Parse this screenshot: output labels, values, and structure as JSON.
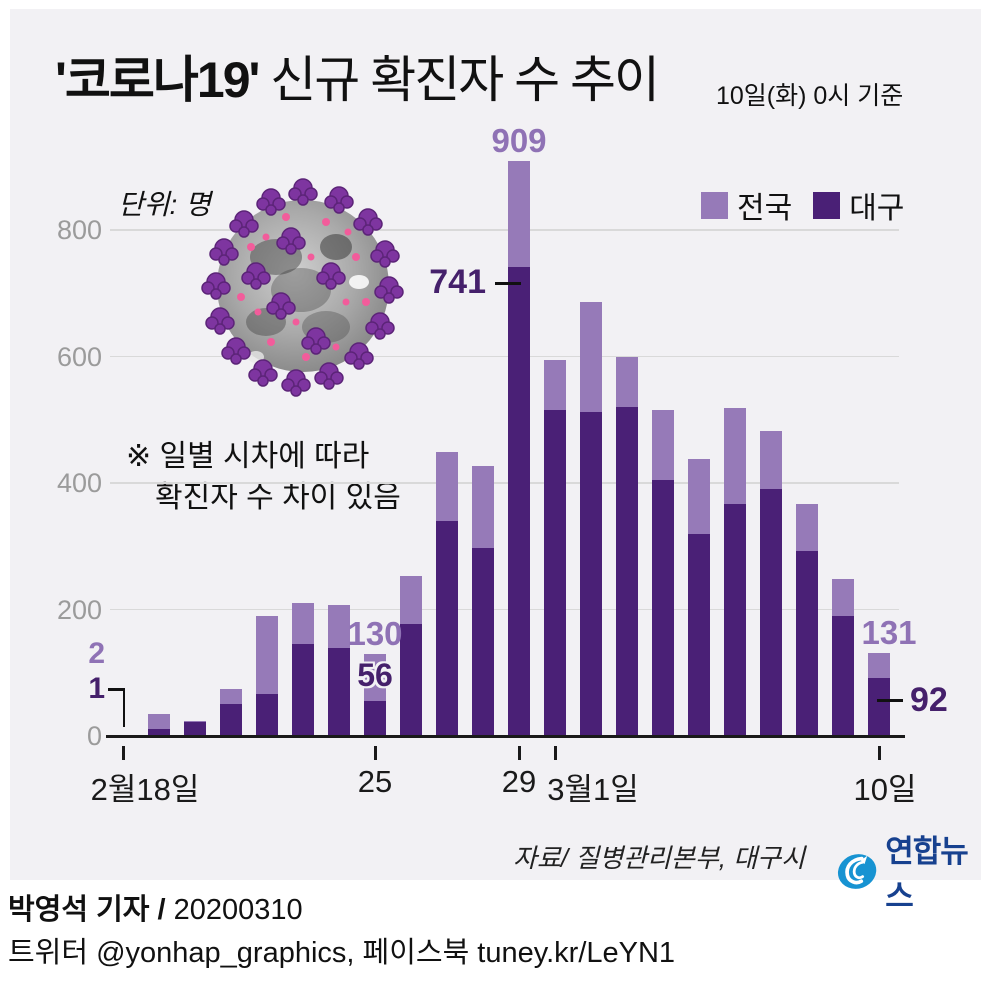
{
  "title": {
    "highlight": "'코로나19'",
    "rest": " 신규 확진자 수 추이",
    "date_note": "10일(화) 0시 기준"
  },
  "unit_label": "단위: 명",
  "note": {
    "line1": "※ 일별 시차에 따라",
    "line2": "확진자 수 차이 있음"
  },
  "legend": [
    {
      "label": "전국",
      "color_key": "bar_total"
    },
    {
      "label": "대구",
      "color_key": "bar_daegu"
    }
  ],
  "colors": {
    "panel_bg": "#f2f1f4",
    "bar_total": "#967ab8",
    "bar_daegu": "#4a2076",
    "label_total": "#8f72b5",
    "label_daegu": "#45206b",
    "grid": "#d9d9d9",
    "axis": "#1a1a1a",
    "ytick": "#9b9b9b",
    "logo_blue": "#1793d2",
    "logo_navy": "#17418f",
    "virus_purple": "#7e35a0",
    "virus_pink": "#f25c9b"
  },
  "chart_data": {
    "type": "bar",
    "title": "'코로나19' 신규 확진자 수 추이",
    "subtitle": "10일(화) 0시 기준",
    "unit": "명",
    "grid": true,
    "ylim": [
      0,
      950
    ],
    "yticks": [
      0,
      200,
      400,
      600,
      800
    ],
    "categories": [
      "2.18",
      "2.19",
      "2.20",
      "2.21",
      "2.22",
      "2.23",
      "2.24",
      "2.25",
      "2.26",
      "2.27",
      "2.28",
      "2.29",
      "3.1",
      "3.2",
      "3.3",
      "3.4",
      "3.5",
      "3.6",
      "3.7",
      "3.8",
      "3.9",
      "3.10"
    ],
    "series": [
      {
        "name": "전국",
        "values": [
          2,
          34,
          23,
          74,
          190,
          210,
          207,
          130,
          253,
          449,
          427,
          909,
          595,
          686,
          600,
          516,
          438,
          518,
          483,
          367,
          248,
          131
        ]
      },
      {
        "name": "대구",
        "values": [
          1,
          11,
          22,
          50,
          67,
          146,
          139,
          56,
          177,
          340,
          297,
          741,
          515,
          512,
          520,
          404,
          320,
          367,
          390,
          293,
          190,
          92
        ]
      }
    ],
    "x_axis_labels": [
      {
        "index": 0,
        "label": "2월18일"
      },
      {
        "index": 7,
        "label": "25"
      },
      {
        "index": 11,
        "label": "29"
      },
      {
        "index": 12,
        "label": "3월1일"
      },
      {
        "index": 21,
        "label": "10일"
      }
    ],
    "annotations": [
      {
        "text": "909",
        "bar": 11,
        "series": "전국",
        "placement": "above-total"
      },
      {
        "text": "741",
        "bar": 11,
        "series": "대구",
        "placement": "left-of-daegu-top"
      },
      {
        "text": "130",
        "bar": 7,
        "series": "전국",
        "placement": "above-total"
      },
      {
        "text": "56",
        "bar": 7,
        "series": "대구",
        "placement": "inside-light"
      },
      {
        "text": "131",
        "bar": 21,
        "series": "전국",
        "placement": "above-total"
      },
      {
        "text": "92",
        "bar": 21,
        "series": "대구",
        "placement": "right-of-daegu-mid"
      },
      {
        "text": "2",
        "bar": 0,
        "series": "전국",
        "placement": "first-bar-upper"
      },
      {
        "text": "1",
        "bar": 0,
        "series": "대구",
        "placement": "first-bar-lower"
      }
    ],
    "legend_position": "top-right"
  },
  "source": "자료/  질병관리본부, 대구시",
  "logo_text": "연합뉴스",
  "byline": {
    "line1_bold": "박영석 기자 /",
    "line1_rest": "  20200310",
    "line2": "트위터 @yonhap_graphics, 페이스북 tuney.kr/LeYN1"
  }
}
